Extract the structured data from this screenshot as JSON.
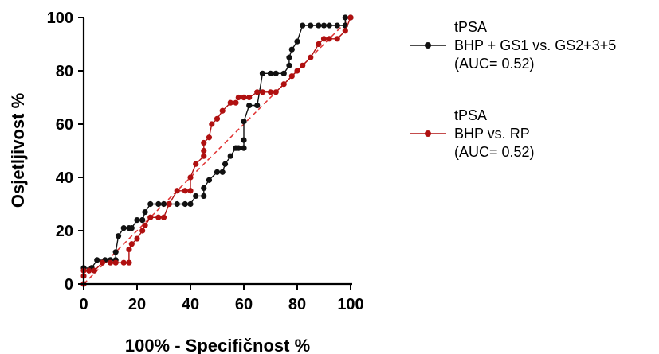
{
  "chart_data": {
    "type": "line",
    "xlabel": "100% - Specifičnost %",
    "ylabel": "Osjetljivost %",
    "xlim": [
      0,
      100
    ],
    "ylim": [
      0,
      100
    ],
    "xticks": [
      "0",
      "20",
      "40",
      "60",
      "80",
      "100"
    ],
    "yticks": [
      "0",
      "20",
      "40",
      "60",
      "80",
      "100"
    ],
    "grid": false,
    "legend_position": "right",
    "reference_line": {
      "x": [
        0,
        100
      ],
      "y": [
        0,
        100
      ],
      "color": "#e03030",
      "style": "dashed"
    },
    "series": [
      {
        "legend_lines": [
          "tPSA",
          "BHP + GS1 vs. GS2+3+5",
          "(AUC= 0.52)"
        ],
        "color": "#111111",
        "x": [
          0,
          0,
          3,
          3,
          5,
          8,
          10,
          12,
          12,
          13,
          15,
          17,
          18,
          20,
          22,
          22,
          23,
          25,
          28,
          30,
          32,
          35,
          38,
          40,
          42,
          45,
          45,
          47,
          50,
          52,
          53,
          55,
          57,
          58,
          60,
          60,
          60,
          62,
          65,
          67,
          70,
          72,
          75,
          77,
          77,
          78,
          80,
          82,
          85,
          88,
          90,
          92,
          95,
          98,
          98,
          100
        ],
        "y": [
          0,
          6,
          6,
          6,
          9,
          9,
          9,
          9,
          12,
          18,
          21,
          21,
          21,
          24,
          24,
          24,
          27,
          30,
          30,
          30,
          30,
          30,
          30,
          30,
          33,
          33,
          36,
          39,
          42,
          42,
          45,
          48,
          51,
          51,
          51,
          54,
          61,
          67,
          67,
          79,
          79,
          79,
          79,
          82,
          85,
          88,
          91,
          97,
          97,
          97,
          97,
          97,
          97,
          97,
          100,
          100
        ]
      },
      {
        "legend_lines": [
          "tPSA",
          "BHP  vs. RP",
          "(AUC= 0.52)"
        ],
        "color": "#b01010",
        "x": [
          0,
          0,
          0,
          2,
          4,
          7,
          10,
          12,
          15,
          17,
          17,
          18,
          20,
          22,
          23,
          25,
          28,
          30,
          32,
          35,
          38,
          40,
          40,
          42,
          45,
          45,
          45,
          47,
          48,
          50,
          52,
          55,
          57,
          58,
          60,
          60,
          60,
          62,
          65,
          67,
          70,
          72,
          75,
          78,
          80,
          82,
          85,
          88,
          90,
          92,
          95,
          98,
          100
        ],
        "y": [
          0,
          3,
          5,
          5,
          5,
          8,
          8,
          8,
          8,
          8,
          13,
          15,
          17,
          20,
          22,
          25,
          25,
          25,
          30,
          35,
          35,
          35,
          40,
          45,
          48,
          50,
          53,
          55,
          60,
          62,
          65,
          68,
          68,
          70,
          70,
          70,
          70,
          70,
          72,
          72,
          72,
          72,
          75,
          78,
          80,
          82,
          85,
          90,
          92,
          92,
          92,
          95,
          100
        ]
      }
    ]
  }
}
